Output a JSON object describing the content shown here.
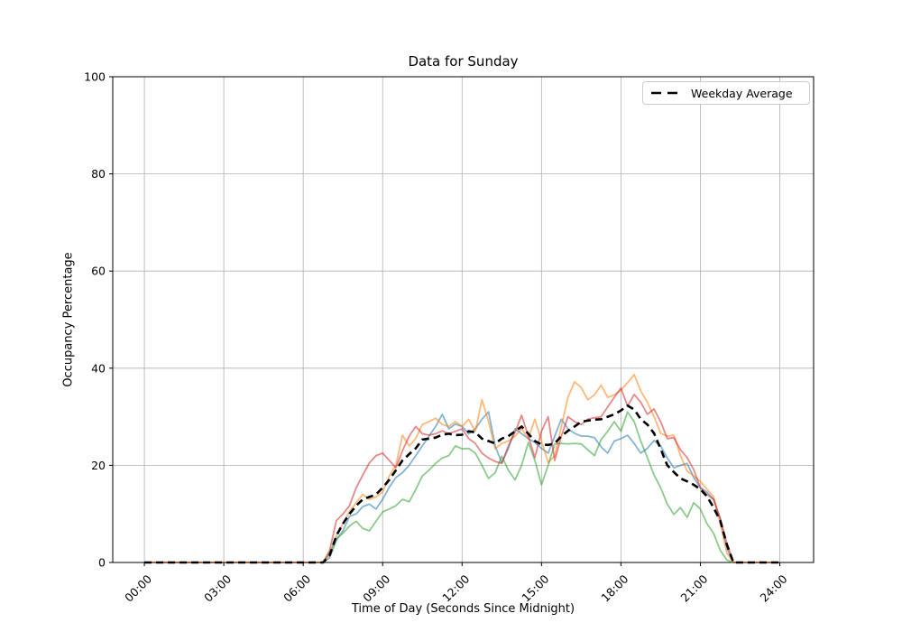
{
  "chart_data": {
    "type": "line",
    "title": "Data for Sunday",
    "xlabel": "Time of Day (Seconds Since Midnight)",
    "ylabel": "Occupancy Percentage",
    "ylim": [
      0,
      100
    ],
    "x_display_range_seconds": [
      -4300,
      91000
    ],
    "grid": true,
    "grid_color": "#b0b0b0",
    "spine_color": "#000000",
    "x_start_seconds": 0,
    "x_step_seconds": 900,
    "xticks": [
      {
        "seconds": 0,
        "label": "00:00"
      },
      {
        "seconds": 10800,
        "label": "03:00"
      },
      {
        "seconds": 21600,
        "label": "06:00"
      },
      {
        "seconds": 32400,
        "label": "09:00"
      },
      {
        "seconds": 43200,
        "label": "12:00"
      },
      {
        "seconds": 54000,
        "label": "15:00"
      },
      {
        "seconds": 64800,
        "label": "18:00"
      },
      {
        "seconds": 75600,
        "label": "21:00"
      },
      {
        "seconds": 86400,
        "label": "24:00"
      }
    ],
    "yticks": [
      {
        "value": 0,
        "label": "0"
      },
      {
        "value": 20,
        "label": "20"
      },
      {
        "value": 40,
        "label": "40"
      },
      {
        "value": 60,
        "label": "60"
      },
      {
        "value": 80,
        "label": "80"
      },
      {
        "value": 100,
        "label": "100"
      }
    ],
    "legend": {
      "position": "upper right",
      "entries": [
        {
          "label": "Weekday Average",
          "color": "#000000",
          "dashed": true
        }
      ]
    },
    "series": [
      {
        "id": "series-blue",
        "color": "#1f77b4",
        "opacity": 0.55,
        "dashed": false,
        "line_width": 1.8,
        "values": [
          0,
          0,
          0,
          0,
          0,
          0,
          0,
          0,
          0,
          0,
          0,
          0,
          0,
          0,
          0,
          0,
          0,
          0,
          0,
          0,
          0,
          0,
          0,
          0,
          0,
          0,
          0,
          0,
          1,
          4.5,
          6.5,
          9.5,
          10,
          11.5,
          12,
          11,
          13,
          15.5,
          17.5,
          18.5,
          20,
          22,
          24,
          26,
          28,
          30.5,
          27.5,
          28.5,
          28,
          26.5,
          27.5,
          29.5,
          31,
          24,
          20.5,
          23.5,
          27.5,
          26.5,
          25.5,
          24.7,
          23.5,
          22.5,
          26,
          29.5,
          27.5,
          26.6,
          26,
          26,
          25.7,
          23.8,
          22.5,
          25,
          25.5,
          26.2,
          24.5,
          22.5,
          23.5,
          25.1,
          24,
          21.5,
          19.5,
          20,
          20.4,
          17.5,
          15.4,
          14.5,
          13,
          9,
          3,
          0,
          0,
          0,
          0,
          0,
          0,
          0,
          0
        ]
      },
      {
        "id": "series-orange",
        "color": "#ff7f0e",
        "opacity": 0.55,
        "dashed": false,
        "line_width": 1.8,
        "values": [
          0,
          0,
          0,
          0,
          0,
          0,
          0,
          0,
          0,
          0,
          0,
          0,
          0,
          0,
          0,
          0,
          0,
          0,
          0,
          0,
          0,
          0,
          0,
          0,
          0,
          0,
          0,
          0,
          1.5,
          5.5,
          8,
          10.5,
          12.3,
          14,
          13,
          13.5,
          14.5,
          17.8,
          20,
          26.2,
          24,
          25.5,
          28.4,
          29,
          29.7,
          28.4,
          28,
          29,
          28,
          29.5,
          27,
          33.5,
          29,
          23.4,
          24.5,
          25,
          26,
          27.5,
          25.5,
          29.5,
          25,
          20.6,
          22,
          28,
          34,
          37.2,
          36,
          33.5,
          34.5,
          36.5,
          34,
          34.5,
          35.5,
          37,
          38.7,
          35.3,
          33,
          30,
          26.6,
          26,
          26.2,
          22,
          18.8,
          17.8,
          16.7,
          15.1,
          13.6,
          8,
          2,
          0,
          0,
          0,
          0,
          0,
          0,
          0,
          0
        ]
      },
      {
        "id": "series-green",
        "color": "#2ca02c",
        "opacity": 0.55,
        "dashed": false,
        "line_width": 1.8,
        "values": [
          0,
          0,
          0,
          0,
          0,
          0,
          0,
          0,
          0,
          0,
          0,
          0,
          0,
          0,
          0,
          0,
          0,
          0,
          0,
          0,
          0,
          0,
          0,
          0,
          0,
          0,
          0,
          0,
          2,
          5,
          6,
          7.5,
          8.5,
          7,
          6.5,
          8.5,
          10.4,
          11,
          11.7,
          13,
          12.5,
          15,
          17.8,
          19,
          20.4,
          21.5,
          22,
          24,
          23.4,
          23.5,
          22.5,
          20,
          17.3,
          18.5,
          21.9,
          19,
          17,
          20,
          24.7,
          21,
          16,
          20,
          24.4,
          24.5,
          24.4,
          24.5,
          24.4,
          23.2,
          22,
          25.3,
          27,
          29,
          27,
          31,
          29,
          25,
          21.6,
          18,
          15.4,
          12,
          9.9,
          11.3,
          9.3,
          12.3,
          11,
          8,
          6,
          2.5,
          0.5,
          0,
          0,
          0,
          0,
          0,
          0,
          0,
          0
        ]
      },
      {
        "id": "series-red",
        "color": "#d62728",
        "opacity": 0.55,
        "dashed": false,
        "line_width": 1.8,
        "values": [
          0,
          0,
          0,
          0,
          0,
          0,
          0,
          0,
          0,
          0,
          0,
          0,
          0,
          0,
          0,
          0,
          0,
          0,
          0,
          0,
          0,
          0,
          0,
          0,
          0,
          0,
          0,
          0,
          2.5,
          8.6,
          10,
          11.7,
          15.4,
          18,
          20.5,
          22,
          22.5,
          21,
          19.5,
          23,
          26,
          28,
          26.5,
          26.2,
          26.5,
          27.1,
          26.5,
          27,
          27.5,
          25.5,
          24.5,
          22.5,
          21.5,
          20.8,
          20.4,
          24,
          26.8,
          30.3,
          26,
          21.6,
          27,
          30,
          21,
          26,
          30,
          29,
          28.4,
          29.5,
          29.8,
          30,
          32,
          34,
          35.9,
          32.2,
          34.6,
          33,
          30.5,
          31.6,
          29,
          25.5,
          25.7,
          23.2,
          21.6,
          19.1,
          15.4,
          14,
          13,
          9,
          4,
          0,
          0,
          0,
          0,
          0,
          0,
          0,
          0
        ]
      },
      {
        "id": "weekday-average",
        "label": "Weekday Average",
        "color": "#000000",
        "opacity": 1,
        "dashed": true,
        "line_width": 2.6,
        "values": [
          0,
          0,
          0,
          0,
          0,
          0,
          0,
          0,
          0,
          0,
          0,
          0,
          0,
          0,
          0,
          0,
          0,
          0,
          0,
          0,
          0,
          0,
          0,
          0,
          0,
          0,
          0,
          0,
          1.5,
          5.5,
          8,
          10,
          11.7,
          13,
          13.5,
          14,
          15.4,
          17,
          19,
          21,
          22.3,
          23.5,
          25.3,
          25.5,
          25.7,
          26.3,
          26.5,
          26.2,
          26.3,
          27,
          26.8,
          25.5,
          25,
          24.5,
          25.5,
          26,
          27,
          28,
          26.5,
          25,
          24.3,
          24.2,
          24.5,
          26,
          27.1,
          28,
          29,
          29.2,
          29.4,
          29.5,
          30,
          30.5,
          31.3,
          32.3,
          31.5,
          29.5,
          28.4,
          26.6,
          23.4,
          20,
          18.6,
          17.3,
          16.7,
          16,
          15.1,
          13.6,
          11.3,
          8.6,
          3.7,
          0,
          0,
          0,
          0,
          0,
          0,
          0,
          0
        ]
      }
    ]
  }
}
